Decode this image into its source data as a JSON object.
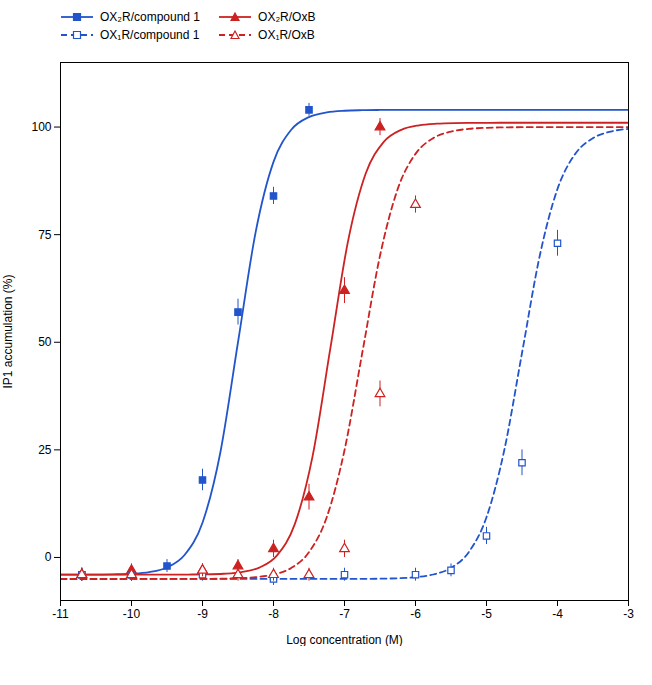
{
  "chart_data": {
    "type": "line",
    "xlabel": "Log concentration (M)",
    "ylabel": "IP1 accumulation (%)",
    "xlim": [
      -11,
      -3
    ],
    "ylim": [
      -10,
      115
    ],
    "xticks": [
      -11,
      -10,
      -9,
      -8,
      -7,
      -6,
      -5,
      -4,
      -3
    ],
    "yticks": [
      0,
      25,
      50,
      75,
      100
    ],
    "grid": false,
    "legend": "upper left",
    "series": [
      {
        "name": "OX₂R/compound 1",
        "color": "#2255cc",
        "line_style": "solid",
        "marker": "square",
        "x": [
          -10.7,
          -10.0,
          -9.5,
          -9.0,
          -8.5,
          -8.0,
          -7.5
        ],
        "values": [
          -4,
          -4,
          -2,
          18,
          57,
          84,
          104
        ],
        "yerr": [
          1.5,
          1.5,
          1.5,
          2.5,
          3,
          2,
          1.5
        ],
        "fit_x": [
          -11,
          -10.75,
          -10.5,
          -10.25,
          -10,
          -9.75,
          -9.5,
          -9.25,
          -9,
          -8.75,
          -8.5,
          -8.25,
          -8,
          -7.75,
          -7.5,
          -7.25,
          -7,
          -6.75,
          -6.5,
          -6.25,
          -6,
          -3
        ],
        "fit_values": [
          -4,
          -3.99,
          -3.97,
          -3.92,
          -3.79,
          -3.4,
          -2.32,
          0.62,
          8.08,
          24.28,
          50,
          75.72,
          91.92,
          99.38,
          102.32,
          103.4,
          103.79,
          103.92,
          103.97,
          103.99,
          104,
          104
        ]
      },
      {
        "name": "OX₂R/OxB",
        "color": "#cc2222",
        "line_style": "solid",
        "marker": "triangle",
        "x": [
          -10.7,
          -10.0,
          -9.0,
          -8.5,
          -8.0,
          -7.5,
          -7.0,
          -6.5
        ],
        "values": [
          -4,
          -3,
          -3,
          -2,
          2,
          14,
          62,
          100
        ],
        "yerr": [
          1.5,
          1.5,
          1.5,
          1.5,
          2,
          3,
          3,
          2
        ],
        "fit_x": [
          -11,
          -9.7,
          -9.45,
          -9.2,
          -8.95,
          -8.7,
          -8.45,
          -8.2,
          -7.95,
          -7.7,
          -7.45,
          -7.2,
          -6.95,
          -6.7,
          -6.45,
          -6.2,
          -5.95,
          -5.7,
          -5.45,
          -5.2,
          -4.95,
          -4.7,
          -3
        ],
        "fit_values": [
          -4,
          -4,
          -3.99,
          -3.97,
          -3.93,
          -3.79,
          -3.41,
          -2.36,
          0.49,
          7.74,
          23.5,
          48.5,
          73.5,
          89.26,
          96.51,
          99.36,
          100.41,
          100.79,
          100.93,
          100.97,
          100.99,
          101,
          101
        ]
      },
      {
        "name": "OX₁R/compound 1",
        "color": "#2255cc",
        "line_style": "dashed",
        "marker": "square-open",
        "x": [
          -10.7,
          -10.0,
          -9.0,
          -8.0,
          -7.0,
          -6.0,
          -5.5,
          -5.0,
          -4.5,
          -4.0
        ],
        "values": [
          -4,
          -4,
          -4,
          -5,
          -4,
          -4,
          -3,
          5,
          22,
          73
        ],
        "yerr": [
          1.5,
          1.5,
          1.5,
          1.5,
          1.5,
          1.5,
          1.5,
          2,
          3,
          3
        ],
        "fit_x": [
          -11,
          -7,
          -6.75,
          -6.5,
          -6.25,
          -6,
          -5.75,
          -5.5,
          -5.25,
          -5,
          -4.75,
          -4.5,
          -4.25,
          -4,
          -3.75,
          -3.5,
          -3.25,
          -3
        ],
        "fit_values": [
          -5,
          -4.99,
          -4.97,
          -4.93,
          -4.83,
          -4.58,
          -3.96,
          -2.43,
          1.23,
          9.36,
          24.9,
          47.5,
          70.1,
          85.64,
          93.77,
          97.43,
          98.96,
          99.58
        ]
      },
      {
        "name": "OX₁R/OxB",
        "color": "#cc2222",
        "line_style": "dashed",
        "marker": "triangle-open",
        "x": [
          -10.7,
          -10.0,
          -9.0,
          -8.5,
          -8.0,
          -7.5,
          -7.0,
          -6.5,
          -6.0
        ],
        "values": [
          -4,
          -4,
          -3,
          -4,
          -4,
          -4,
          2,
          38,
          82
        ],
        "yerr": [
          1.5,
          1.5,
          1.5,
          1.5,
          1.5,
          1.5,
          2,
          3,
          2
        ],
        "fit_x": [
          -11,
          -9.25,
          -9,
          -8.75,
          -8.5,
          -8.25,
          -8,
          -7.75,
          -7.5,
          -7.25,
          -7,
          -6.75,
          -6.5,
          -6.25,
          -6,
          -5.75,
          -5.5,
          -5.25,
          -5,
          -4.75,
          -4.5,
          -4.25,
          -3
        ],
        "fit_values": [
          -5,
          -4.99,
          -4.97,
          -4.93,
          -4.83,
          -4.58,
          -3.96,
          -2.43,
          1.23,
          9.36,
          24.9,
          47.5,
          70.1,
          85.64,
          93.77,
          97.43,
          98.96,
          99.58,
          99.83,
          99.93,
          99.97,
          99.99,
          100
        ]
      }
    ]
  }
}
